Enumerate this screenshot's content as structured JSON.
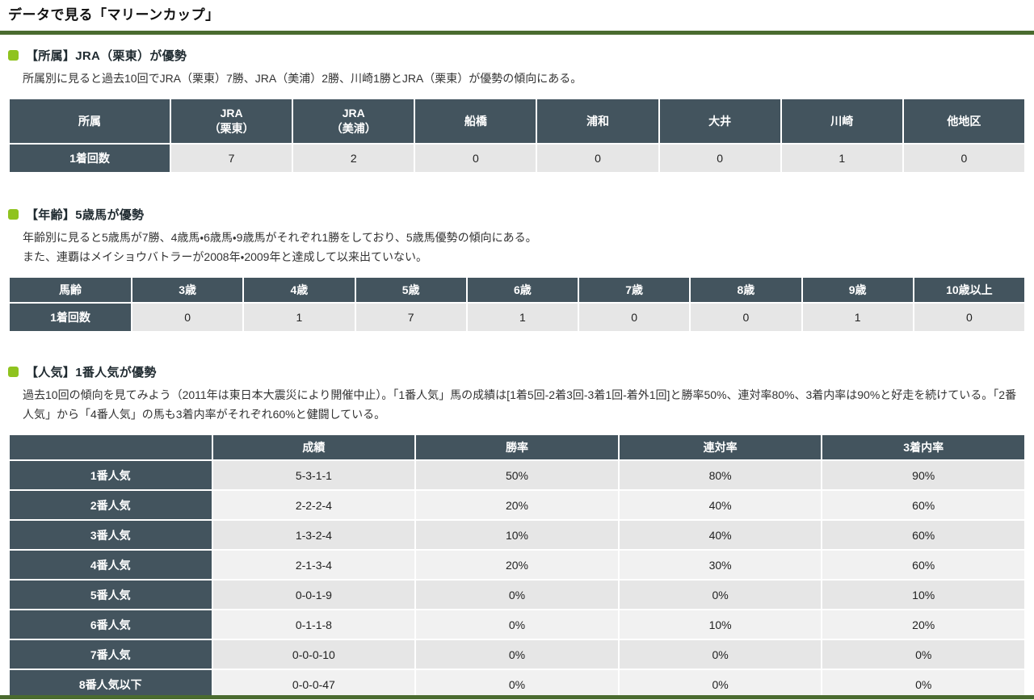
{
  "colors": {
    "accent-green": "#8fc31f",
    "title-bar": "#4a6b2f",
    "header-bg": "#43545e",
    "row-dark": "#e6e6e6",
    "row-light": "#f1f1f1"
  },
  "page": {
    "title": "データで見る「マリーンカップ」"
  },
  "sections": [
    {
      "id": "affiliation",
      "heading": "【所属】JRA（栗東）が優勢",
      "paragraphs": [
        "所属別に見ると過去10回でJRA（栗東）7勝、JRA（美浦）2勝、川崎1勝とJRA（栗東）が優勢の傾向にある。"
      ],
      "table": {
        "header": [
          "所属",
          "JRA\n（栗東）",
          "JRA\n（美浦）",
          "船橋",
          "浦和",
          "大井",
          "川崎",
          "他地区"
        ],
        "rows": [
          [
            "1着回数",
            "7",
            "2",
            "0",
            "0",
            "0",
            "1",
            "0"
          ]
        ]
      }
    },
    {
      "id": "age",
      "heading": "【年齢】5歳馬が優勢",
      "paragraphs": [
        "年齢別に見ると5歳馬が7勝、4歳馬・6歳馬・9歳馬がそれぞれ1勝をしており、5歳馬優勢の傾向にある。",
        "また、連覇はメイショウバトラーが2008年・2009年と達成して以来出ていない。"
      ],
      "table": {
        "header": [
          "馬齢",
          "3歳",
          "4歳",
          "5歳",
          "6歳",
          "7歳",
          "8歳",
          "9歳",
          "10歳以上"
        ],
        "rows": [
          [
            "1着回数",
            "0",
            "1",
            "7",
            "1",
            "0",
            "0",
            "1",
            "0"
          ]
        ]
      }
    },
    {
      "id": "popularity",
      "heading": "【人気】1番人気が優勢",
      "paragraphs": [
        "過去10回の傾向を見てみよう（2011年は東日本大震災により開催中止）。「1番人気」馬の成績は[1着5回-2着3回-3着1回-着外1回]と勝率50%、連対率80%、3着内率は90%と好走を続けている。「2番人気」から「4番人気」の馬も3着内率がそれぞれ60%と健闘している。"
      ],
      "table": {
        "header": [
          "",
          "成績",
          "勝率",
          "連対率",
          "3着内率"
        ],
        "rows": [
          [
            "1番人気",
            "5-3-1-1",
            "50%",
            "80%",
            "90%"
          ],
          [
            "2番人気",
            "2-2-2-4",
            "20%",
            "40%",
            "60%"
          ],
          [
            "3番人気",
            "1-3-2-4",
            "10%",
            "40%",
            "60%"
          ],
          [
            "4番人気",
            "2-1-3-4",
            "20%",
            "30%",
            "60%"
          ],
          [
            "5番人気",
            "0-0-1-9",
            "0%",
            "0%",
            "10%"
          ],
          [
            "6番人気",
            "0-1-1-8",
            "0%",
            "10%",
            "20%"
          ],
          [
            "7番人気",
            "0-0-0-10",
            "0%",
            "0%",
            "0%"
          ],
          [
            "8番人気以下",
            "0-0-0-47",
            "0%",
            "0%",
            "0%"
          ]
        ]
      }
    }
  ]
}
